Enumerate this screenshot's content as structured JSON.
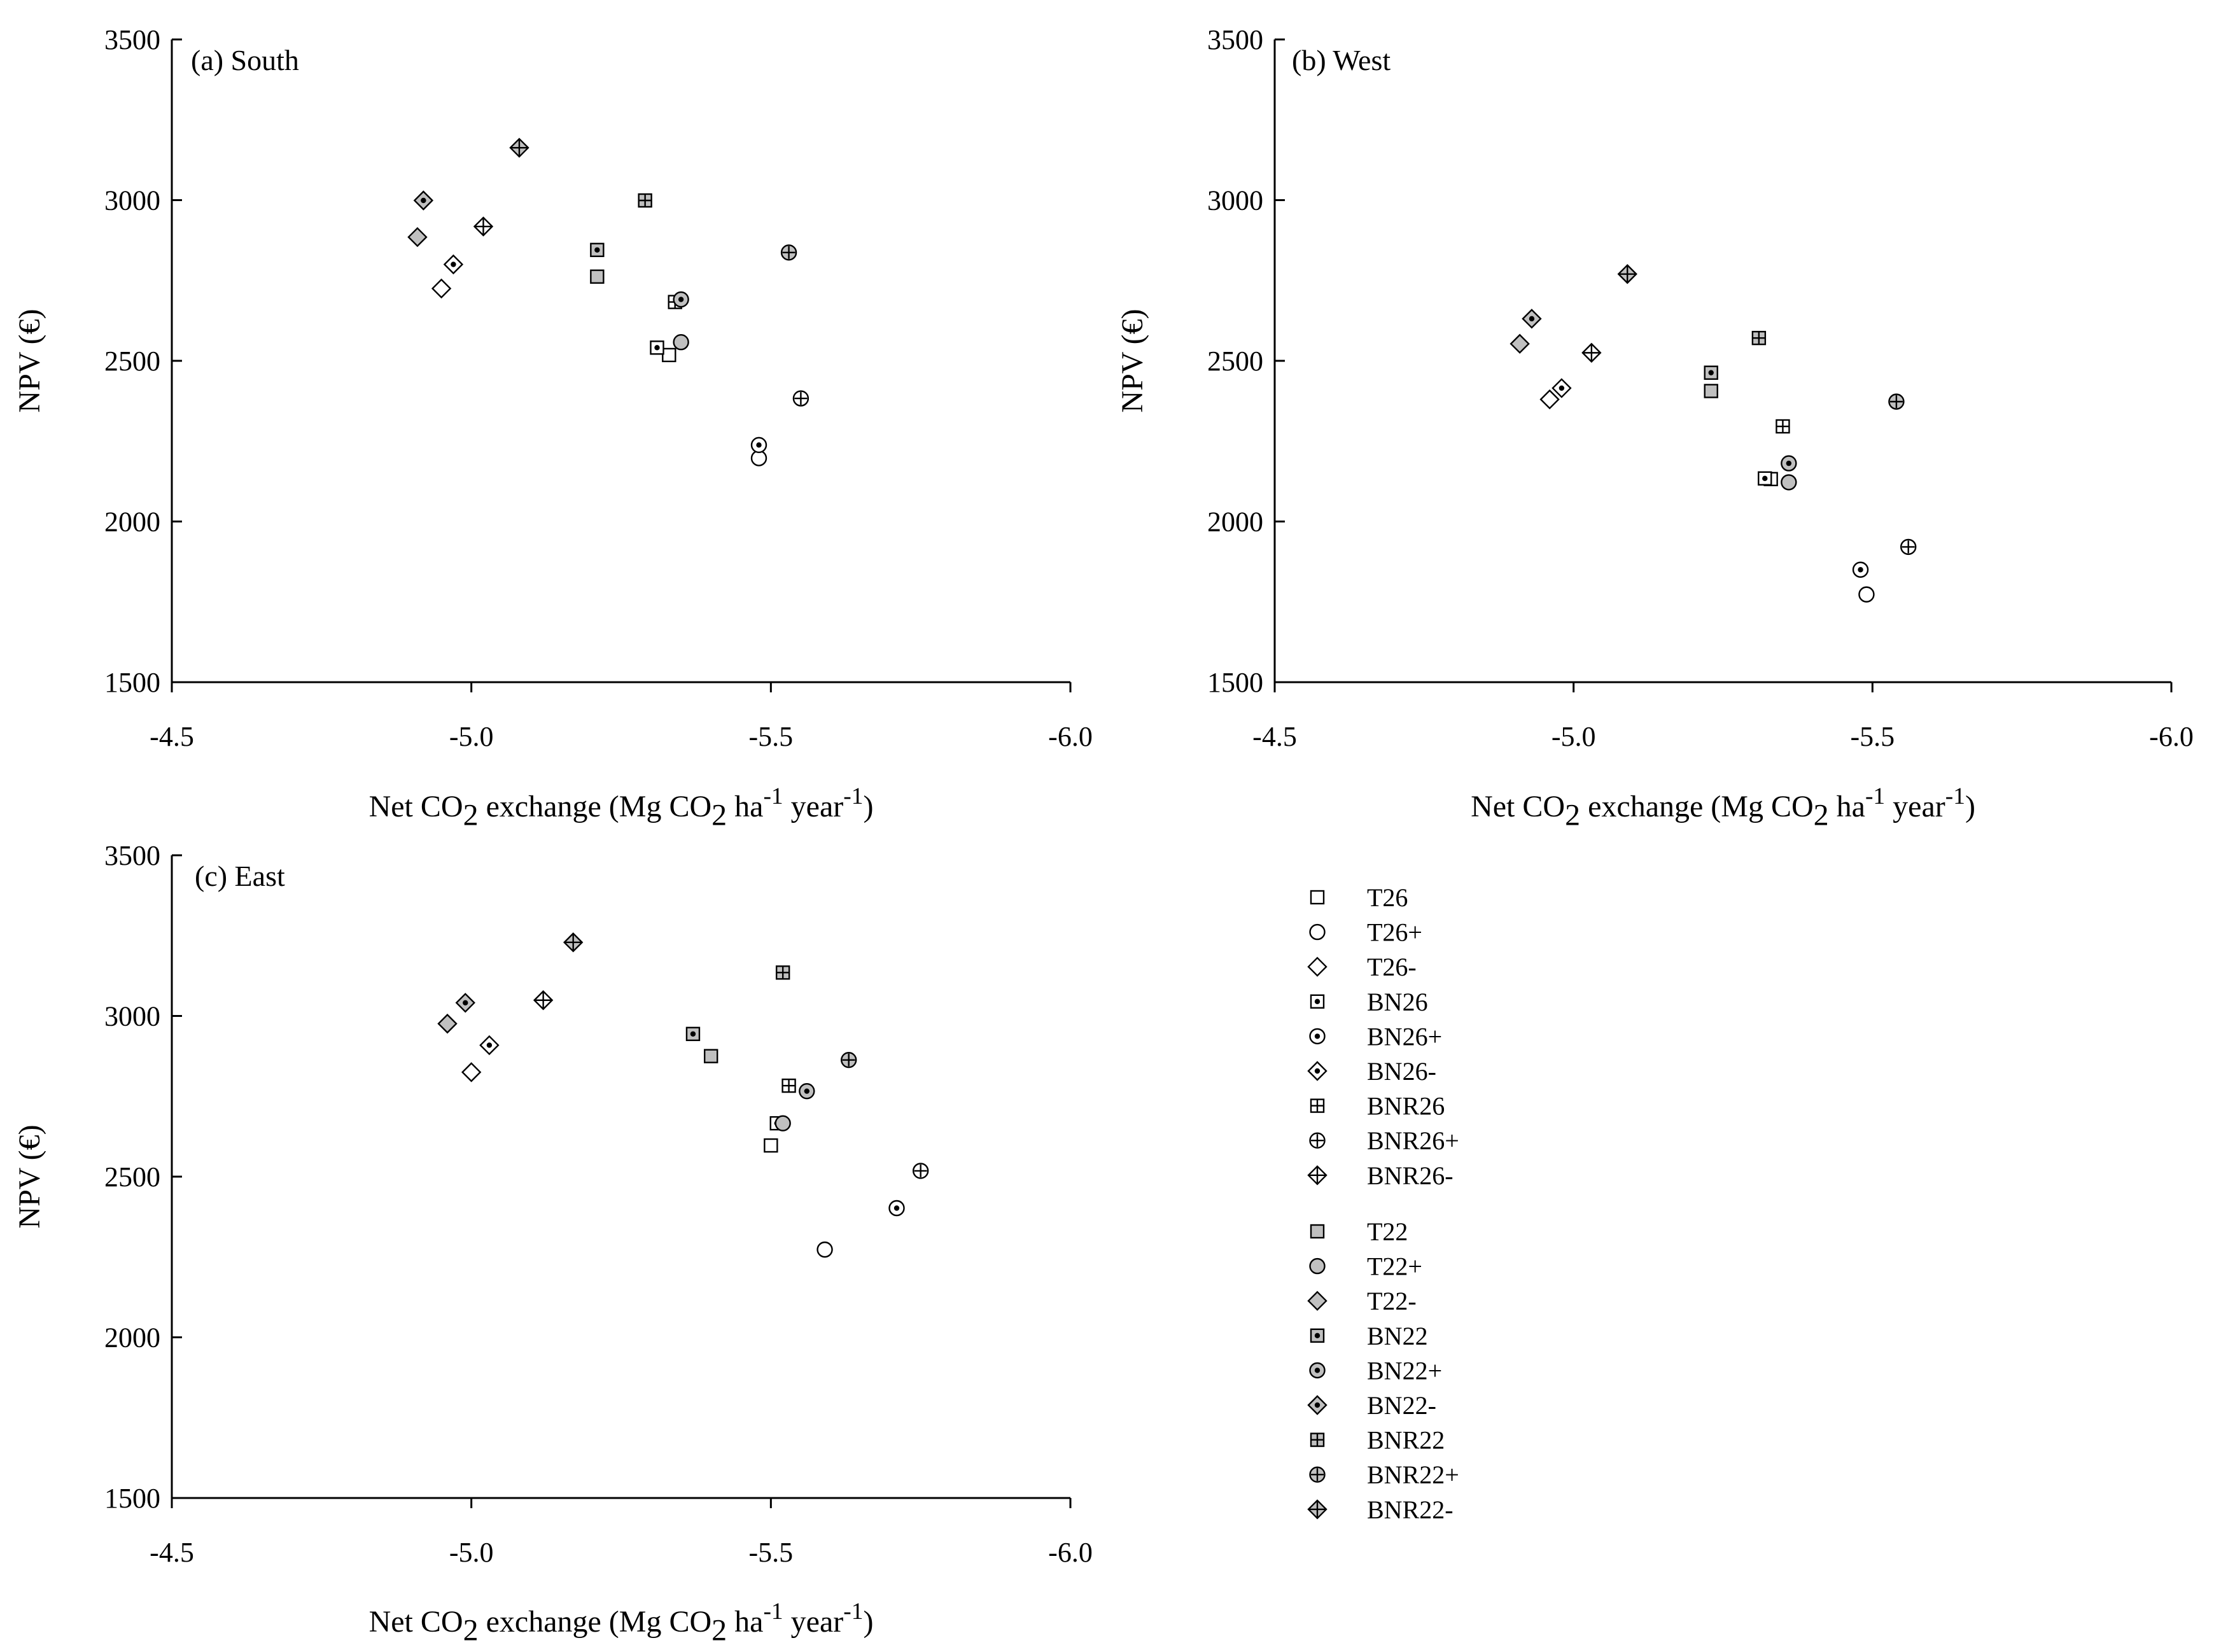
{
  "chart_data": [
    {
      "type": "scatter",
      "panel_label": "(a) South",
      "xlabel": "Net CO2 exchange (Mg CO2 ha-1 year-1)",
      "ylabel": "NPV (€)",
      "xlim": [
        -4.5,
        -6.0
      ],
      "ylim": [
        1500,
        3500
      ],
      "xticks": [
        "-4.5",
        "-5.0",
        "-5.5",
        "-6.0"
      ],
      "yticks": [
        "1500",
        "2000",
        "2500",
        "3000",
        "3500"
      ],
      "points": [
        {
          "series": "T26",
          "x": -5.33,
          "y": 2518
        },
        {
          "series": "T26+",
          "x": -5.48,
          "y": 2197
        },
        {
          "series": "T26-",
          "x": -4.95,
          "y": 2725
        },
        {
          "series": "BN26",
          "x": -5.31,
          "y": 2541
        },
        {
          "series": "BN26+",
          "x": -5.48,
          "y": 2238
        },
        {
          "series": "BN26-",
          "x": -4.97,
          "y": 2800
        },
        {
          "series": "BNR26",
          "x": -5.34,
          "y": 2683
        },
        {
          "series": "BNR26+",
          "x": -5.55,
          "y": 2383
        },
        {
          "series": "BNR26-",
          "x": -5.02,
          "y": 2918
        },
        {
          "series": "T22",
          "x": -5.21,
          "y": 2762
        },
        {
          "series": "T22+",
          "x": -5.35,
          "y": 2558
        },
        {
          "series": "T22-",
          "x": -4.91,
          "y": 2885
        },
        {
          "series": "BN22",
          "x": -5.21,
          "y": 2845
        },
        {
          "series": "BN22+",
          "x": -5.35,
          "y": 2691
        },
        {
          "series": "BN22-",
          "x": -4.92,
          "y": 2999
        },
        {
          "series": "BNR22",
          "x": -5.29,
          "y": 2999
        },
        {
          "series": "BNR22+",
          "x": -5.53,
          "y": 2837
        },
        {
          "series": "BNR22-",
          "x": -5.08,
          "y": 3163
        }
      ]
    },
    {
      "type": "scatter",
      "panel_label": "(b) West",
      "xlabel": "Net CO2 exchange (Mg CO2 ha-1 year-1)",
      "ylabel": "NPV (€)",
      "xlim": [
        -4.5,
        -6.0
      ],
      "ylim": [
        1500,
        3500
      ],
      "xticks": [
        "-4.5",
        "-5.0",
        "-5.5",
        "-6.0"
      ],
      "yticks": [
        "1500",
        "2000",
        "2500",
        "3000",
        "3500"
      ],
      "points": [
        {
          "series": "T26",
          "x": -5.33,
          "y": 2132
        },
        {
          "series": "T26+",
          "x": -5.49,
          "y": 1773
        },
        {
          "series": "T26-",
          "x": -4.96,
          "y": 2380
        },
        {
          "series": "BN26",
          "x": -5.32,
          "y": 2134
        },
        {
          "series": "BN26+",
          "x": -5.48,
          "y": 1850
        },
        {
          "series": "BN26-",
          "x": -4.98,
          "y": 2415
        },
        {
          "series": "BNR26",
          "x": -5.35,
          "y": 2296
        },
        {
          "series": "BNR26+",
          "x": -5.56,
          "y": 1921
        },
        {
          "series": "BNR26-",
          "x": -5.03,
          "y": 2525
        },
        {
          "series": "T22",
          "x": -5.23,
          "y": 2406
        },
        {
          "series": "T22+",
          "x": -5.36,
          "y": 2122
        },
        {
          "series": "T22-",
          "x": -4.91,
          "y": 2553
        },
        {
          "series": "BN22",
          "x": -5.23,
          "y": 2463
        },
        {
          "series": "BN22+",
          "x": -5.36,
          "y": 2181
        },
        {
          "series": "BN22-",
          "x": -4.93,
          "y": 2631
        },
        {
          "series": "BNR22",
          "x": -5.31,
          "y": 2571
        },
        {
          "series": "BNR22+",
          "x": -5.54,
          "y": 2373
        },
        {
          "series": "BNR22-",
          "x": -5.09,
          "y": 2770
        }
      ]
    },
    {
      "type": "scatter",
      "panel_label": "(c) East",
      "xlabel": "Net CO2 exchange (Mg CO2 ha-1 year-1)",
      "ylabel": "NPV (€)",
      "xlim": [
        -4.5,
        -6.0
      ],
      "ylim": [
        1500,
        3500
      ],
      "xticks": [
        "-4.5",
        "-5.0",
        "-5.5",
        "-6.0"
      ],
      "yticks": [
        "1500",
        "2000",
        "2500",
        "3000",
        "3500"
      ],
      "points": [
        {
          "series": "T26",
          "x": -5.5,
          "y": 2597
        },
        {
          "series": "T26+",
          "x": -5.59,
          "y": 2273
        },
        {
          "series": "T26-",
          "x": -5.0,
          "y": 2825
        },
        {
          "series": "BN26",
          "x": -5.51,
          "y": 2666
        },
        {
          "series": "BN26+",
          "x": -5.71,
          "y": 2402
        },
        {
          "series": "BN26-",
          "x": -5.03,
          "y": 2909
        },
        {
          "series": "BNR26",
          "x": -5.53,
          "y": 2783
        },
        {
          "series": "BNR26+",
          "x": -5.75,
          "y": 2518
        },
        {
          "series": "BNR26-",
          "x": -5.12,
          "y": 3049
        },
        {
          "series": "T22",
          "x": -5.4,
          "y": 2875
        },
        {
          "series": "T22+",
          "x": -5.52,
          "y": 2666
        },
        {
          "series": "T22-",
          "x": -4.96,
          "y": 2976
        },
        {
          "series": "BN22",
          "x": -5.37,
          "y": 2944
        },
        {
          "series": "BN22+",
          "x": -5.56,
          "y": 2766
        },
        {
          "series": "BN22-",
          "x": -4.99,
          "y": 3041
        },
        {
          "series": "BNR22",
          "x": -5.52,
          "y": 3135
        },
        {
          "series": "BNR22+",
          "x": -5.63,
          "y": 2863
        },
        {
          "series": "BNR22-",
          "x": -5.17,
          "y": 3229
        }
      ]
    }
  ],
  "legend": {
    "group1": [
      {
        "label": "T26",
        "marker": "square",
        "fill": "#ffffff",
        "inner": "none"
      },
      {
        "label": "T26+",
        "marker": "circle",
        "fill": "#ffffff",
        "inner": "none"
      },
      {
        "label": "T26-",
        "marker": "diamond",
        "fill": "#ffffff",
        "inner": "none"
      },
      {
        "label": "BN26",
        "marker": "square",
        "fill": "#ffffff",
        "inner": "dot"
      },
      {
        "label": "BN26+",
        "marker": "circle",
        "fill": "#ffffff",
        "inner": "dot"
      },
      {
        "label": "BN26-",
        "marker": "diamond",
        "fill": "#ffffff",
        "inner": "dot"
      },
      {
        "label": "BNR26",
        "marker": "square",
        "fill": "#ffffff",
        "inner": "cross"
      },
      {
        "label": "BNR26+",
        "marker": "circle",
        "fill": "#ffffff",
        "inner": "cross"
      },
      {
        "label": "BNR26-",
        "marker": "diamond",
        "fill": "#ffffff",
        "inner": "cross"
      }
    ],
    "group2": [
      {
        "label": "T22",
        "marker": "square",
        "fill": "#c0c0c0",
        "inner": "none"
      },
      {
        "label": "T22+",
        "marker": "circle",
        "fill": "#c0c0c0",
        "inner": "none"
      },
      {
        "label": "T22-",
        "marker": "diamond",
        "fill": "#c0c0c0",
        "inner": "none"
      },
      {
        "label": "BN22",
        "marker": "square",
        "fill": "#c0c0c0",
        "inner": "dot"
      },
      {
        "label": "BN22+",
        "marker": "circle",
        "fill": "#c0c0c0",
        "inner": "dot"
      },
      {
        "label": "BN22-",
        "marker": "diamond",
        "fill": "#c0c0c0",
        "inner": "dot"
      },
      {
        "label": "BNR22",
        "marker": "square",
        "fill": "#c0c0c0",
        "inner": "cross"
      },
      {
        "label": "BNR22+",
        "marker": "circle",
        "fill": "#c0c0c0",
        "inner": "cross"
      },
      {
        "label": "BNR22-",
        "marker": "diamond",
        "fill": "#c0c0c0",
        "inner": "cross"
      }
    ]
  },
  "colors": {
    "axis": "#000000",
    "gray_fill": "#c0c0c0",
    "open_fill": "#ffffff"
  }
}
